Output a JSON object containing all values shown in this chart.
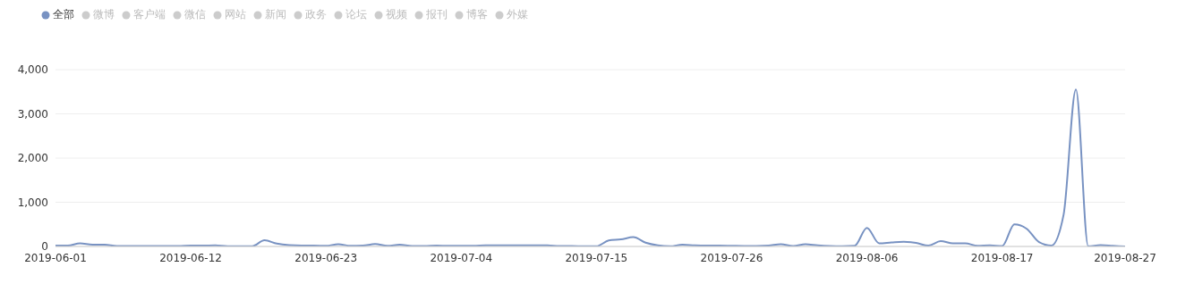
{
  "chart_data": {
    "type": "line",
    "x": [
      "2019-06-01",
      "2019-06-02",
      "2019-06-03",
      "2019-06-04",
      "2019-06-05",
      "2019-06-06",
      "2019-06-07",
      "2019-06-08",
      "2019-06-09",
      "2019-06-10",
      "2019-06-11",
      "2019-06-12",
      "2019-06-13",
      "2019-06-14",
      "2019-06-15",
      "2019-06-16",
      "2019-06-17",
      "2019-06-18",
      "2019-06-19",
      "2019-06-20",
      "2019-06-21",
      "2019-06-22",
      "2019-06-23",
      "2019-06-24",
      "2019-06-25",
      "2019-06-26",
      "2019-06-27",
      "2019-06-28",
      "2019-06-29",
      "2019-06-30",
      "2019-07-01",
      "2019-07-02",
      "2019-07-03",
      "2019-07-04",
      "2019-07-05",
      "2019-07-06",
      "2019-07-07",
      "2019-07-08",
      "2019-07-09",
      "2019-07-10",
      "2019-07-11",
      "2019-07-12",
      "2019-07-13",
      "2019-07-14",
      "2019-07-15",
      "2019-07-16",
      "2019-07-17",
      "2019-07-18",
      "2019-07-19",
      "2019-07-20",
      "2019-07-21",
      "2019-07-22",
      "2019-07-23",
      "2019-07-24",
      "2019-07-25",
      "2019-07-26",
      "2019-07-27",
      "2019-07-28",
      "2019-07-29",
      "2019-07-30",
      "2019-07-31",
      "2019-08-01",
      "2019-08-02",
      "2019-08-03",
      "2019-08-04",
      "2019-08-05",
      "2019-08-06",
      "2019-08-07",
      "2019-08-08",
      "2019-08-09",
      "2019-08-10",
      "2019-08-11",
      "2019-08-12",
      "2019-08-13",
      "2019-08-14",
      "2019-08-15",
      "2019-08-16",
      "2019-08-17",
      "2019-08-18",
      "2019-08-19",
      "2019-08-20",
      "2019-08-21",
      "2019-08-22",
      "2019-08-23",
      "2019-08-24",
      "2019-08-25",
      "2019-08-26",
      "2019-08-27"
    ],
    "series": [
      {
        "name": "全部",
        "color": "#7892c2",
        "values": [
          20,
          20,
          70,
          40,
          40,
          10,
          10,
          10,
          10,
          10,
          10,
          20,
          20,
          25,
          5,
          5,
          5,
          140,
          65,
          30,
          20,
          20,
          15,
          50,
          15,
          20,
          55,
          15,
          40,
          10,
          10,
          20,
          15,
          15,
          15,
          25,
          25,
          25,
          25,
          25,
          25,
          10,
          10,
          5,
          5,
          135,
          160,
          210,
          85,
          25,
          5,
          40,
          25,
          20,
          20,
          15,
          10,
          10,
          20,
          50,
          10,
          50,
          25,
          10,
          5,
          15,
          420,
          70,
          90,
          105,
          80,
          20,
          120,
          70,
          70,
          15,
          25,
          10,
          500,
          400,
          100,
          20,
          720,
          3550,
          5,
          30,
          15,
          0
        ]
      },
      {
        "name": "微博",
        "color": "#cccccc",
        "values": [
          null,
          null,
          null,
          null,
          null,
          null,
          null,
          null,
          null,
          null,
          null,
          null,
          null,
          null,
          null,
          null,
          null,
          null,
          null,
          null,
          null,
          null,
          null,
          null,
          null,
          null,
          null,
          null,
          null,
          null,
          null,
          null,
          null,
          null,
          null,
          null,
          null,
          null,
          null,
          null,
          null,
          null,
          null,
          null,
          null,
          null,
          null,
          null,
          null,
          null,
          null,
          null,
          null,
          null,
          null,
          null,
          null,
          null,
          null,
          null,
          null,
          null,
          null,
          null,
          null,
          null,
          null,
          null,
          null,
          null,
          null,
          null,
          null,
          null,
          null,
          null,
          null,
          null,
          null,
          null,
          null,
          null,
          null,
          null,
          null,
          null,
          null,
          null
        ]
      },
      {
        "name": "客户端",
        "color": "#cccccc",
        "values": [
          null,
          null,
          null,
          null,
          null,
          null,
          null,
          null,
          null,
          null,
          null,
          null,
          null,
          null,
          null,
          null,
          null,
          null,
          null,
          null,
          null,
          null,
          null,
          null,
          null,
          null,
          null,
          null,
          null,
          null,
          null,
          null,
          null,
          null,
          null,
          null,
          null,
          null,
          null,
          null,
          null,
          null,
          null,
          null,
          null,
          null,
          null,
          null,
          null,
          null,
          null,
          null,
          null,
          null,
          null,
          null,
          null,
          null,
          null,
          null,
          null,
          null,
          null,
          null,
          null,
          null,
          null,
          null,
          null,
          null,
          null,
          null,
          null,
          null,
          null,
          null,
          null,
          null,
          null,
          null,
          null,
          null,
          null,
          null,
          null,
          null,
          null,
          null
        ]
      },
      {
        "name": "微信",
        "color": "#cccccc",
        "values": [
          null,
          null,
          null,
          null,
          null,
          null,
          null,
          null,
          null,
          null,
          null,
          null,
          null,
          null,
          null,
          null,
          null,
          null,
          null,
          null,
          null,
          null,
          null,
          null,
          null,
          null,
          null,
          null,
          null,
          null,
          null,
          null,
          null,
          null,
          null,
          null,
          null,
          null,
          null,
          null,
          null,
          null,
          null,
          null,
          null,
          null,
          null,
          null,
          null,
          null,
          null,
          null,
          null,
          null,
          null,
          null,
          null,
          null,
          null,
          null,
          null,
          null,
          null,
          null,
          null,
          null,
          null,
          null,
          null,
          null,
          null,
          null,
          null,
          null,
          null,
          null,
          null,
          null,
          null,
          null,
          null,
          null,
          null,
          null,
          null,
          null,
          null,
          null
        ]
      },
      {
        "name": "网站",
        "color": "#cccccc",
        "values": [
          null,
          null,
          null,
          null,
          null,
          null,
          null,
          null,
          null,
          null,
          null,
          null,
          null,
          null,
          null,
          null,
          null,
          null,
          null,
          null,
          null,
          null,
          null,
          null,
          null,
          null,
          null,
          null,
          null,
          null,
          null,
          null,
          null,
          null,
          null,
          null,
          null,
          null,
          null,
          null,
          null,
          null,
          null,
          null,
          null,
          null,
          null,
          null,
          null,
          null,
          null,
          null,
          null,
          null,
          null,
          null,
          null,
          null,
          null,
          null,
          null,
          null,
          null,
          null,
          null,
          null,
          null,
          null,
          null,
          null,
          null,
          null,
          null,
          null,
          null,
          null,
          null,
          null,
          null,
          null,
          null,
          null,
          null,
          null,
          null,
          null,
          null,
          null
        ]
      },
      {
        "name": "新闻",
        "color": "#cccccc",
        "values": [
          null,
          null,
          null,
          null,
          null,
          null,
          null,
          null,
          null,
          null,
          null,
          null,
          null,
          null,
          null,
          null,
          null,
          null,
          null,
          null,
          null,
          null,
          null,
          null,
          null,
          null,
          null,
          null,
          null,
          null,
          null,
          null,
          null,
          null,
          null,
          null,
          null,
          null,
          null,
          null,
          null,
          null,
          null,
          null,
          null,
          null,
          null,
          null,
          null,
          null,
          null,
          null,
          null,
          null,
          null,
          null,
          null,
          null,
          null,
          null,
          null,
          null,
          null,
          null,
          null,
          null,
          null,
          null,
          null,
          null,
          null,
          null,
          null,
          null,
          null,
          null,
          null,
          null,
          null,
          null,
          null,
          null,
          null,
          null,
          null,
          null,
          null,
          null
        ]
      },
      {
        "name": "政务",
        "color": "#cccccc",
        "values": [
          null,
          null,
          null,
          null,
          null,
          null,
          null,
          null,
          null,
          null,
          null,
          null,
          null,
          null,
          null,
          null,
          null,
          null,
          null,
          null,
          null,
          null,
          null,
          null,
          null,
          null,
          null,
          null,
          null,
          null,
          null,
          null,
          null,
          null,
          null,
          null,
          null,
          null,
          null,
          null,
          null,
          null,
          null,
          null,
          null,
          null,
          null,
          null,
          null,
          null,
          null,
          null,
          null,
          null,
          null,
          null,
          null,
          null,
          null,
          null,
          null,
          null,
          null,
          null,
          null,
          null,
          null,
          null,
          null,
          null,
          null,
          null,
          null,
          null,
          null,
          null,
          null,
          null,
          null,
          null,
          null,
          null,
          null,
          null,
          null,
          null,
          null,
          null
        ]
      },
      {
        "name": "论坛",
        "color": "#cccccc",
        "values": [
          null,
          null,
          null,
          null,
          null,
          null,
          null,
          null,
          null,
          null,
          null,
          null,
          null,
          null,
          null,
          null,
          null,
          null,
          null,
          null,
          null,
          null,
          null,
          null,
          null,
          null,
          null,
          null,
          null,
          null,
          null,
          null,
          null,
          null,
          null,
          null,
          null,
          null,
          null,
          null,
          null,
          null,
          null,
          null,
          null,
          null,
          null,
          null,
          null,
          null,
          null,
          null,
          null,
          null,
          null,
          null,
          null,
          null,
          null,
          null,
          null,
          null,
          null,
          null,
          null,
          null,
          null,
          null,
          null,
          null,
          null,
          null,
          null,
          null,
          null,
          null,
          null,
          null,
          null,
          null,
          null,
          null,
          null,
          null,
          null,
          null,
          null,
          null
        ]
      },
      {
        "name": "视频",
        "color": "#cccccc",
        "values": [
          null,
          null,
          null,
          null,
          null,
          null,
          null,
          null,
          null,
          null,
          null,
          null,
          null,
          null,
          null,
          null,
          null,
          null,
          null,
          null,
          null,
          null,
          null,
          null,
          null,
          null,
          null,
          null,
          null,
          null,
          null,
          null,
          null,
          null,
          null,
          null,
          null,
          null,
          null,
          null,
          null,
          null,
          null,
          null,
          null,
          null,
          null,
          null,
          null,
          null,
          null,
          null,
          null,
          null,
          null,
          null,
          null,
          null,
          null,
          null,
          null,
          null,
          null,
          null,
          null,
          null,
          null,
          null,
          null,
          null,
          null,
          null,
          null,
          null,
          null,
          null,
          null,
          null,
          null,
          null,
          null,
          null,
          null,
          null,
          null,
          null,
          null,
          null
        ]
      },
      {
        "name": "报刊",
        "color": "#cccccc",
        "values": [
          null,
          null,
          null,
          null,
          null,
          null,
          null,
          null,
          null,
          null,
          null,
          null,
          null,
          null,
          null,
          null,
          null,
          null,
          null,
          null,
          null,
          null,
          null,
          null,
          null,
          null,
          null,
          null,
          null,
          null,
          null,
          null,
          null,
          null,
          null,
          null,
          null,
          null,
          null,
          null,
          null,
          null,
          null,
          null,
          null,
          null,
          null,
          null,
          null,
          null,
          null,
          null,
          null,
          null,
          null,
          null,
          null,
          null,
          null,
          null,
          null,
          null,
          null,
          null,
          null,
          null,
          null,
          null,
          null,
          null,
          null,
          null,
          null,
          null,
          null,
          null,
          null,
          null,
          null,
          null,
          null,
          null,
          null,
          null,
          null,
          null,
          null,
          null
        ]
      },
      {
        "name": "博客",
        "color": "#cccccc",
        "values": [
          null,
          null,
          null,
          null,
          null,
          null,
          null,
          null,
          null,
          null,
          null,
          null,
          null,
          null,
          null,
          null,
          null,
          null,
          null,
          null,
          null,
          null,
          null,
          null,
          null,
          null,
          null,
          null,
          null,
          null,
          null,
          null,
          null,
          null,
          null,
          null,
          null,
          null,
          null,
          null,
          null,
          null,
          null,
          null,
          null,
          null,
          null,
          null,
          null,
          null,
          null,
          null,
          null,
          null,
          null,
          null,
          null,
          null,
          null,
          null,
          null,
          null,
          null,
          null,
          null,
          null,
          null,
          null,
          null,
          null,
          null,
          null,
          null,
          null,
          null,
          null,
          null,
          null,
          null,
          null,
          null,
          null,
          null,
          null,
          null,
          null,
          null,
          null
        ]
      },
      {
        "name": "外媒",
        "color": "#cccccc",
        "values": [
          null,
          null,
          null,
          null,
          null,
          null,
          null,
          null,
          null,
          null,
          null,
          null,
          null,
          null,
          null,
          null,
          null,
          null,
          null,
          null,
          null,
          null,
          null,
          null,
          null,
          null,
          null,
          null,
          null,
          null,
          null,
          null,
          null,
          null,
          null,
          null,
          null,
          null,
          null,
          null,
          null,
          null,
          null,
          null,
          null,
          null,
          null,
          null,
          null,
          null,
          null,
          null,
          null,
          null,
          null,
          null,
          null,
          null,
          null,
          null,
          null,
          null,
          null,
          null,
          null,
          null,
          null,
          null,
          null,
          null,
          null,
          null,
          null,
          null,
          null,
          null,
          null,
          null,
          null,
          null,
          null,
          null,
          null,
          null,
          null,
          null,
          null,
          null
        ]
      }
    ],
    "xlim": [
      "2019-06-01",
      "2019-08-27"
    ],
    "xticks": [
      "2019-06-01",
      "2019-06-12",
      "2019-06-23",
      "2019-07-04",
      "2019-07-15",
      "2019-07-26",
      "2019-08-06",
      "2019-08-17",
      "2019-08-27"
    ],
    "ylim": [
      0,
      4000
    ],
    "yticks": [
      0,
      {
        "value": 1000,
        "label": "1,000"
      },
      {
        "value": 2000,
        "label": "2,000"
      },
      {
        "value": 3000,
        "label": "3,000"
      },
      {
        "value": 4000,
        "label": "4,000"
      }
    ],
    "grid": "y",
    "legend": "top left",
    "line_style": "solid"
  }
}
